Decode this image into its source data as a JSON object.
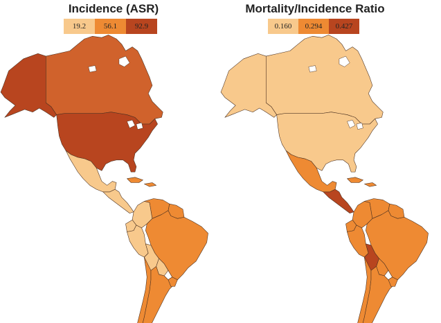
{
  "colors": {
    "low": "#f8c98c",
    "mid": "#ee8a33",
    "high": "#b8451f",
    "na_sweden_like": "#d0622c",
    "stroke": "#4a3020"
  },
  "left_map": {
    "title": "Incidence (ASR)",
    "legend": [
      {
        "label": "19.2",
        "color": "#f8c98c"
      },
      {
        "label": "56.1",
        "color": "#ee8a33"
      },
      {
        "label": "92.9",
        "color": "#b8451f"
      }
    ],
    "regions": {
      "alaska": "high",
      "canada": "canada",
      "usa": "high",
      "mexico": "low",
      "central_america": "low",
      "caribbean": "mid",
      "colombia": "low",
      "venezuela": "mid",
      "guianas": "mid",
      "ecuador": "low",
      "peru": "low",
      "brazil": "mid",
      "bolivia": "low",
      "paraguay": "low",
      "chile": "mid",
      "argentina": "mid",
      "uruguay": "mid"
    }
  },
  "right_map": {
    "title": "Mortality/Incidence Ratio",
    "legend": [
      {
        "label": "0.160",
        "color": "#f8c98c"
      },
      {
        "label": "0.294",
        "color": "#ee8a33"
      },
      {
        "label": "0.427",
        "color": "#b8451f"
      }
    ],
    "regions": {
      "alaska": "low",
      "canada": "low",
      "usa": "low",
      "mexico": "mid",
      "central_america": "high",
      "caribbean": "mid",
      "colombia": "mid",
      "venezuela": "mid",
      "guianas": "mid",
      "ecuador": "mid",
      "peru": "mid",
      "brazil": "mid",
      "bolivia": "high",
      "paraguay": "mid",
      "chile": "mid",
      "argentina": "mid",
      "uruguay": "mid"
    }
  }
}
